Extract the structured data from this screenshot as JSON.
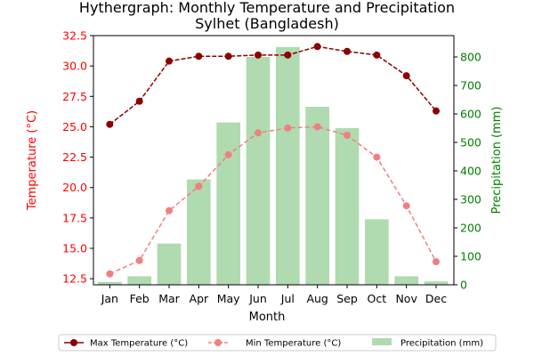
{
  "chart_data": {
    "type": "bar+line",
    "title_line1": "Hythergraph: Monthly Temperature and Precipitation",
    "title_line2": "Sylhet (Bangladesh)",
    "xlabel": "Month",
    "ylabel_left": "Temperature (°C)",
    "ylabel_right": "Precipitation (mm)",
    "categories": [
      "Jan",
      "Feb",
      "Mar",
      "Apr",
      "May",
      "Jun",
      "Jul",
      "Aug",
      "Sep",
      "Oct",
      "Nov",
      "Dec"
    ],
    "ylim_left": [
      12,
      32.5
    ],
    "ylim_right": [
      0,
      875
    ],
    "yticks_left": [
      "12.5",
      "15.0",
      "17.5",
      "20.0",
      "22.5",
      "25.0",
      "27.5",
      "30.0",
      "32.5"
    ],
    "yticks_right": [
      "0",
      "100",
      "200",
      "300",
      "400",
      "500",
      "600",
      "700",
      "800"
    ],
    "series": [
      {
        "name": "Max Temperature (°C)",
        "axis": "left",
        "kind": "line",
        "color": "#8b0000",
        "values": [
          25.2,
          27.1,
          30.4,
          30.8,
          30.8,
          30.9,
          30.9,
          31.6,
          31.2,
          30.9,
          29.2,
          26.3
        ]
      },
      {
        "name": "Min Temperature (°C)",
        "axis": "left",
        "kind": "line",
        "color": "#f08080",
        "values": [
          12.9,
          14.0,
          18.1,
          20.1,
          22.7,
          24.5,
          24.9,
          25.0,
          24.3,
          22.5,
          18.5,
          13.9
        ]
      },
      {
        "name": "Precipitation (mm)",
        "axis": "right",
        "kind": "bar",
        "color": "#b0dab0",
        "values": [
          10,
          30,
          145,
          370,
          570,
          800,
          835,
          625,
          550,
          230,
          30,
          12
        ]
      }
    ],
    "legend_position": "bottom"
  }
}
